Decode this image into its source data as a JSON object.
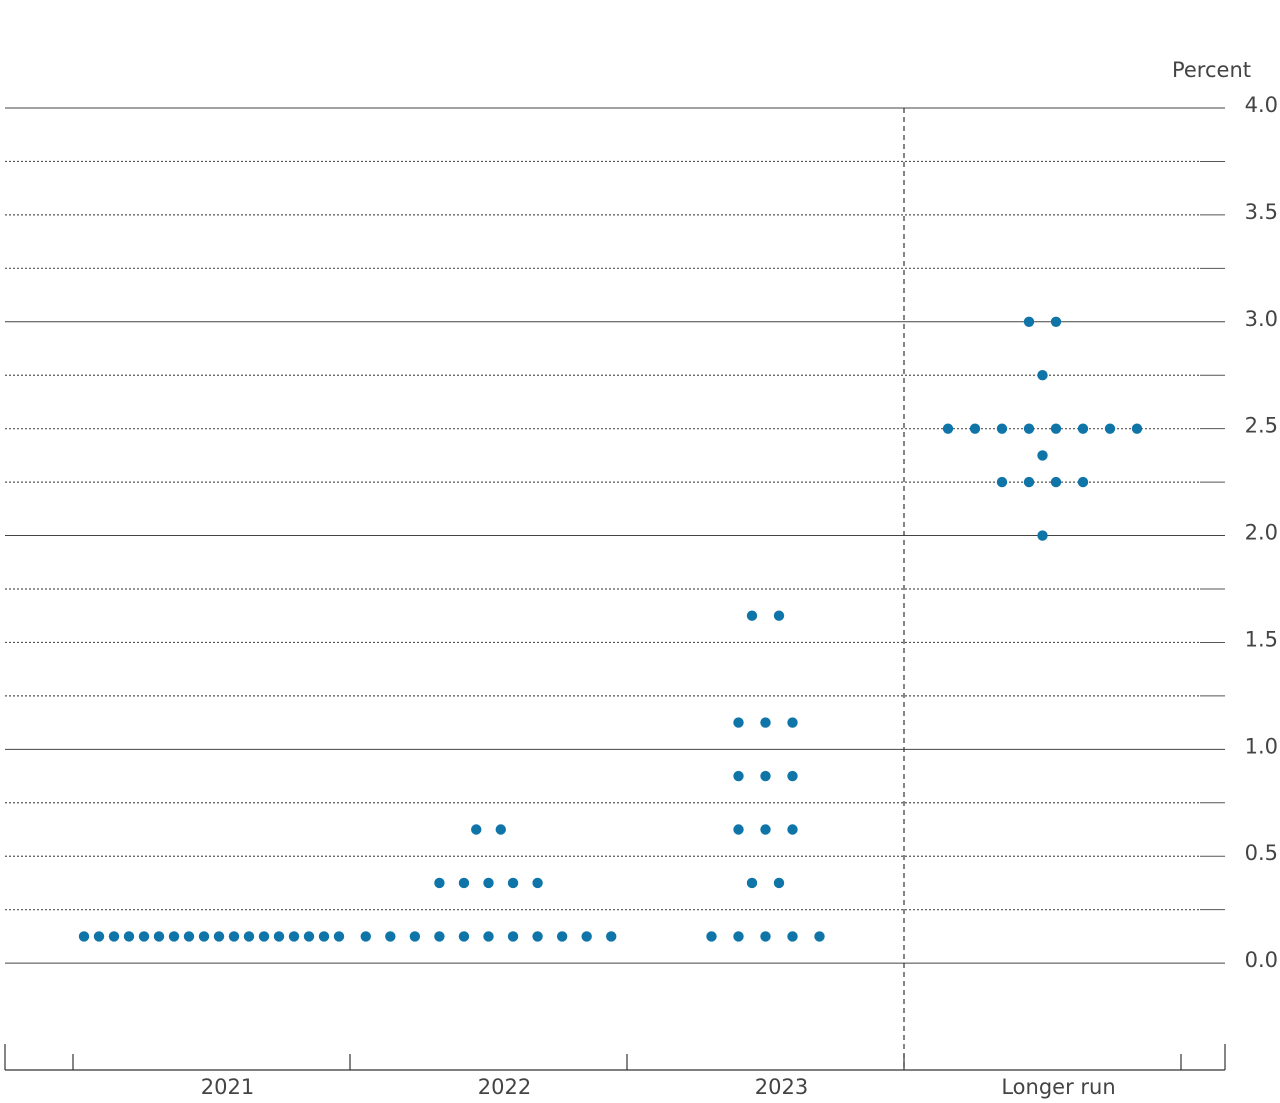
{
  "chart_data": {
    "type": "dot",
    "y_label": "Percent",
    "categories": [
      "2021",
      "2022",
      "2023",
      "Longer run"
    ],
    "values": [
      [
        0.125,
        0.125,
        0.125,
        0.125,
        0.125,
        0.125,
        0.125,
        0.125,
        0.125,
        0.125,
        0.125,
        0.125,
        0.125,
        0.125,
        0.125,
        0.125,
        0.125,
        0.125
      ],
      [
        0.125,
        0.125,
        0.125,
        0.125,
        0.125,
        0.125,
        0.125,
        0.125,
        0.125,
        0.125,
        0.125,
        0.375,
        0.375,
        0.375,
        0.375,
        0.375,
        0.625,
        0.625
      ],
      [
        0.125,
        0.125,
        0.125,
        0.125,
        0.125,
        0.375,
        0.375,
        0.625,
        0.625,
        0.625,
        0.875,
        0.875,
        0.875,
        1.125,
        1.125,
        1.125,
        1.625,
        1.625
      ],
      [
        2.0,
        2.25,
        2.25,
        2.25,
        2.25,
        2.375,
        2.5,
        2.5,
        2.5,
        2.5,
        2.5,
        2.5,
        2.5,
        2.5,
        2.75,
        3.0,
        3.0
      ]
    ],
    "color": "#0f75a8",
    "ylim": [
      -0.5,
      4.0
    ],
    "yticks": [
      {
        "value": 0,
        "label": "0.0"
      },
      0.5,
      {
        "value": 1,
        "label": "1.0"
      },
      1.5,
      {
        "value": 2,
        "label": "2.0"
      },
      2.5,
      {
        "value": 3,
        "label": "3.0"
      },
      3.5,
      {
        "value": 4,
        "label": "4.0"
      }
    ],
    "minor_yticks": [
      0.25,
      0.75,
      1.25,
      1.75,
      2.25,
      2.75,
      3.25,
      3.75
    ],
    "grid": true
  }
}
